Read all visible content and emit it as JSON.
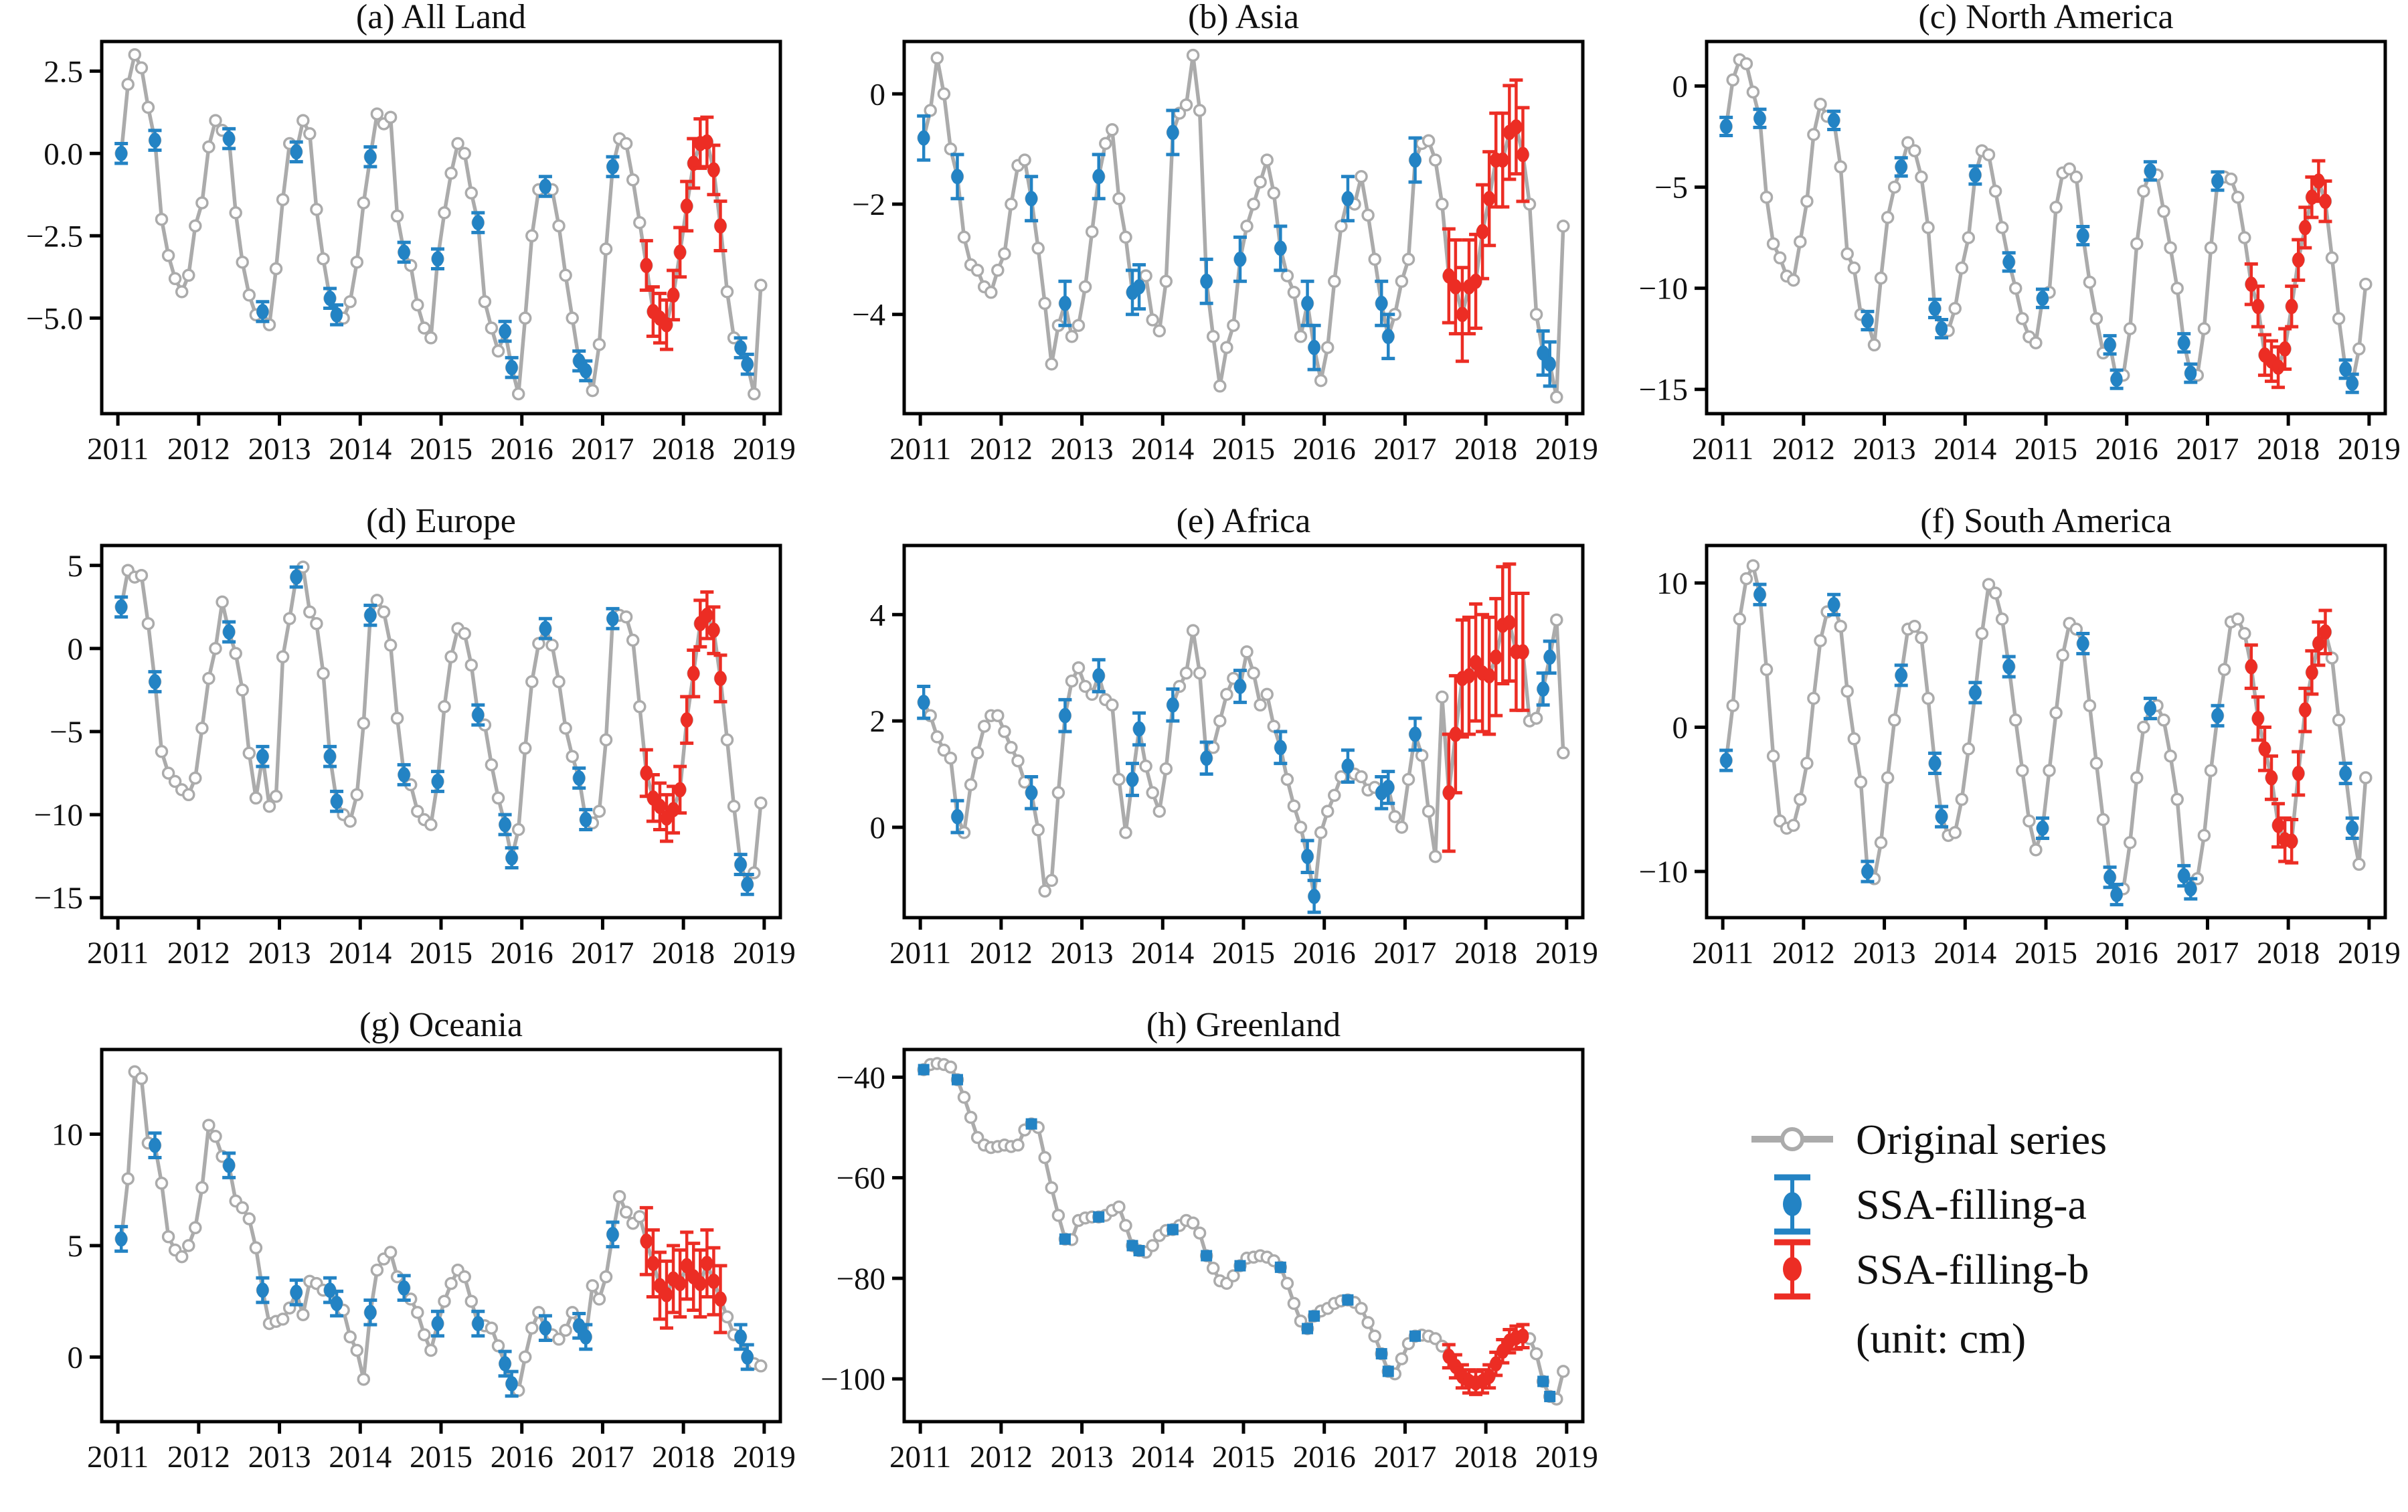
{
  "colors": {
    "original": "#ababab",
    "marker_face_original": "#ffffff",
    "ssa_a": "#2383c4",
    "ssa_b": "#ec2d24",
    "axis": "#000000",
    "background": "#ffffff"
  },
  "legend": {
    "items": [
      {
        "label": "Original series",
        "series": "original"
      },
      {
        "label": "SSA-filling-a",
        "series": "ssa_a"
      },
      {
        "label": "SSA-filling-b",
        "series": "ssa_b"
      }
    ],
    "unit_label": "(unit: cm)"
  },
  "chart_data": [
    {
      "id": "a",
      "title": "(a) All Land",
      "type": "line",
      "x_start_year": 2011,
      "xlim": [
        2010.8,
        2019.2
      ],
      "x_ticks": [
        2011,
        2012,
        2013,
        2014,
        2015,
        2016,
        2017,
        2018,
        2019
      ],
      "ylim": [
        -7.9,
        3.4
      ],
      "y_ticks": [
        2.5,
        0.0,
        -2.5,
        -5.0
      ],
      "y_tick_decimals": 1,
      "marker_a": "ellipse",
      "err_a": 0.3,
      "err_b": 0.75,
      "ssa_a_indices": [
        0,
        5,
        16,
        21,
        26,
        31,
        32,
        37,
        42,
        47,
        53,
        57,
        58,
        63,
        68,
        69,
        73,
        92,
        93
      ],
      "ssa_b_indices": [
        78,
        79,
        80,
        81,
        82,
        83,
        84,
        85,
        86,
        87,
        88,
        89
      ],
      "values": [
        0.0,
        2.1,
        3.0,
        2.6,
        1.4,
        0.4,
        -2.0,
        -3.1,
        -3.8,
        -4.2,
        -3.7,
        -2.2,
        -1.5,
        0.2,
        1.0,
        0.7,
        0.45,
        -1.8,
        -3.3,
        -4.3,
        -4.9,
        -4.8,
        -5.2,
        -3.5,
        -1.4,
        0.3,
        0.05,
        1.0,
        0.6,
        -1.7,
        -3.2,
        -4.4,
        -4.9,
        -5.0,
        -4.5,
        -3.3,
        -1.5,
        -0.1,
        1.2,
        0.9,
        1.1,
        -1.9,
        -3.0,
        -3.4,
        -4.6,
        -5.3,
        -5.6,
        -3.2,
        -1.8,
        -0.6,
        0.3,
        0.0,
        -1.2,
        -2.1,
        -4.5,
        -5.3,
        -6.0,
        -5.4,
        -6.5,
        -7.3,
        -5.0,
        -2.5,
        -1.1,
        -1.0,
        -1.1,
        -2.2,
        -3.7,
        -5.0,
        -6.3,
        -6.6,
        -7.2,
        -5.8,
        -2.9,
        -0.4,
        0.45,
        0.3,
        -0.8,
        -2.1,
        -3.4,
        -4.8,
        -5.0,
        -5.2,
        -4.3,
        -3.0,
        -1.6,
        -0.3,
        0.3,
        0.35,
        -0.5,
        -2.2,
        -4.2,
        -5.6,
        -5.9,
        -6.4,
        -7.3,
        -4.0
      ]
    },
    {
      "id": "b",
      "title": "(b) Asia",
      "type": "line",
      "x_start_year": 2011,
      "xlim": [
        2010.8,
        2019.2
      ],
      "x_ticks": [
        2011,
        2012,
        2013,
        2014,
        2015,
        2016,
        2017,
        2018,
        2019
      ],
      "ylim": [
        -5.8,
        0.95
      ],
      "y_ticks": [
        0,
        -2,
        -4
      ],
      "y_tick_decimals": 0,
      "marker_a": "ellipse",
      "err_a": 0.4,
      "err_b": 0.85,
      "ssa_a_indices": [
        0,
        5,
        16,
        21,
        26,
        31,
        32,
        37,
        42,
        47,
        53,
        57,
        58,
        63,
        68,
        69,
        73,
        92,
        93
      ],
      "ssa_b_indices": [
        78,
        79,
        80,
        81,
        82,
        83,
        84,
        85,
        86,
        87,
        88,
        89
      ],
      "values": [
        -0.8,
        -0.3,
        0.65,
        0.0,
        -1.0,
        -1.5,
        -2.6,
        -3.1,
        -3.2,
        -3.5,
        -3.6,
        -3.2,
        -2.9,
        -2.0,
        -1.3,
        -1.2,
        -1.9,
        -2.8,
        -3.8,
        -4.9,
        -4.2,
        -3.8,
        -4.4,
        -4.2,
        -3.5,
        -2.5,
        -1.5,
        -0.9,
        -0.65,
        -1.9,
        -2.6,
        -3.6,
        -3.5,
        -3.3,
        -4.1,
        -4.3,
        -3.4,
        -0.7,
        -0.35,
        -0.2,
        0.7,
        -0.3,
        -3.4,
        -4.4,
        -5.3,
        -4.6,
        -4.2,
        -3.0,
        -2.4,
        -2.0,
        -1.6,
        -1.2,
        -1.8,
        -2.8,
        -3.3,
        -3.6,
        -4.4,
        -3.8,
        -4.6,
        -5.2,
        -4.6,
        -3.4,
        -2.4,
        -1.9,
        -2.0,
        -1.5,
        -2.2,
        -3.0,
        -3.8,
        -4.4,
        -4.0,
        -3.4,
        -3.0,
        -1.2,
        -0.9,
        -0.85,
        -1.2,
        -2.0,
        -3.3,
        -3.5,
        -4.0,
        -3.5,
        -3.4,
        -2.5,
        -1.9,
        -1.2,
        -1.2,
        -0.7,
        -0.6,
        -1.1,
        -2.0,
        -4.0,
        -4.7,
        -4.9,
        -5.5,
        -2.4
      ]
    },
    {
      "id": "c",
      "title": "(c) North America",
      "type": "line",
      "x_start_year": 2011,
      "xlim": [
        2010.8,
        2019.2
      ],
      "x_ticks": [
        2011,
        2012,
        2013,
        2014,
        2015,
        2016,
        2017,
        2018,
        2019
      ],
      "ylim": [
        -16.2,
        2.2
      ],
      "y_ticks": [
        0,
        -5,
        -10,
        -15
      ],
      "y_tick_decimals": 0,
      "marker_a": "ellipse",
      "err_a": 0.45,
      "err_b": 1.0,
      "ssa_a_indices": [
        0,
        5,
        16,
        21,
        26,
        31,
        32,
        37,
        42,
        47,
        53,
        57,
        58,
        63,
        68,
        69,
        73,
        92,
        93
      ],
      "ssa_b_indices": [
        78,
        79,
        80,
        81,
        82,
        83,
        84,
        85,
        86,
        87,
        88,
        89
      ],
      "values": [
        -2.0,
        0.3,
        1.3,
        1.1,
        -0.3,
        -1.6,
        -5.5,
        -7.8,
        -8.5,
        -9.4,
        -9.6,
        -7.7,
        -5.7,
        -2.4,
        -0.9,
        -1.5,
        -1.7,
        -4.0,
        -8.3,
        -9.0,
        -11.3,
        -11.6,
        -12.8,
        -9.5,
        -6.5,
        -5.0,
        -4.0,
        -2.8,
        -3.2,
        -4.5,
        -7.0,
        -11.0,
        -12.0,
        -12.1,
        -11.0,
        -9.0,
        -7.5,
        -4.4,
        -3.2,
        -3.4,
        -5.2,
        -7.0,
        -8.7,
        -10.0,
        -11.5,
        -12.4,
        -12.7,
        -10.5,
        -10.2,
        -6.0,
        -4.3,
        -4.1,
        -4.5,
        -7.4,
        -9.7,
        -11.5,
        -13.2,
        -12.8,
        -14.5,
        -14.3,
        -12.0,
        -7.8,
        -5.2,
        -4.2,
        -4.4,
        -6.2,
        -8.0,
        -10.0,
        -12.7,
        -14.2,
        -14.3,
        -12.0,
        -8.0,
        -4.7,
        -4.5,
        -4.6,
        -5.5,
        -7.5,
        -9.8,
        -10.9,
        -13.3,
        -13.6,
        -13.9,
        -13.0,
        -10.9,
        -8.6,
        -7.0,
        -5.5,
        -4.7,
        -5.7,
        -8.5,
        -11.5,
        -14.0,
        -14.7,
        -13.0,
        -9.8
      ]
    },
    {
      "id": "d",
      "title": "(d) Europe",
      "type": "line",
      "x_start_year": 2011,
      "xlim": [
        2010.8,
        2019.2
      ],
      "x_ticks": [
        2011,
        2012,
        2013,
        2014,
        2015,
        2016,
        2017,
        2018,
        2019
      ],
      "ylim": [
        -16.2,
        6.2
      ],
      "y_ticks": [
        5,
        0,
        -5,
        -10,
        -15
      ],
      "y_tick_decimals": 0,
      "marker_a": "ellipse",
      "err_a": 0.6,
      "err_b": 1.4,
      "ssa_a_indices": [
        0,
        5,
        16,
        21,
        26,
        31,
        32,
        37,
        42,
        47,
        53,
        57,
        58,
        63,
        68,
        69,
        73,
        92,
        93
      ],
      "ssa_b_indices": [
        78,
        79,
        80,
        81,
        82,
        83,
        84,
        85,
        86,
        87,
        88,
        89
      ],
      "values": [
        2.5,
        4.7,
        4.3,
        4.4,
        1.5,
        -2.0,
        -6.2,
        -7.5,
        -8.0,
        -8.5,
        -8.8,
        -7.8,
        -4.8,
        -1.8,
        0.0,
        2.8,
        1.0,
        -0.3,
        -2.5,
        -6.3,
        -9.0,
        -6.5,
        -9.5,
        -8.9,
        -0.5,
        1.8,
        4.3,
        4.9,
        2.2,
        1.5,
        -1.5,
        -6.5,
        -9.2,
        -10.0,
        -10.4,
        -8.8,
        -4.5,
        2.0,
        2.9,
        2.2,
        0.2,
        -4.2,
        -7.6,
        -8.2,
        -9.8,
        -10.3,
        -10.6,
        -8.0,
        -3.5,
        -0.5,
        1.2,
        0.9,
        -1.0,
        -4.0,
        -4.6,
        -7.0,
        -9.0,
        -10.6,
        -12.6,
        -10.9,
        -6.0,
        -2.0,
        0.3,
        1.2,
        0.2,
        -2.0,
        -4.8,
        -6.5,
        -7.8,
        -10.3,
        -10.5,
        -9.8,
        -5.5,
        1.8,
        2.0,
        1.9,
        0.5,
        -3.5,
        -7.5,
        -9.0,
        -9.5,
        -10.2,
        -9.7,
        -8.5,
        -4.3,
        -1.5,
        1.5,
        2.0,
        1.1,
        -1.8,
        -5.5,
        -9.5,
        -13.0,
        -14.2,
        -13.5,
        -9.3
      ]
    },
    {
      "id": "e",
      "title": "(e) Africa",
      "type": "line",
      "x_start_year": 2011,
      "xlim": [
        2010.8,
        2019.2
      ],
      "x_ticks": [
        2011,
        2012,
        2013,
        2014,
        2015,
        2016,
        2017,
        2018,
        2019
      ],
      "ylim": [
        -1.7,
        5.3
      ],
      "y_ticks": [
        4,
        2,
        0
      ],
      "y_tick_decimals": 0,
      "marker_a": "ellipse",
      "err_a": 0.3,
      "err_b": 1.1,
      "ssa_a_indices": [
        0,
        5,
        16,
        21,
        26,
        31,
        32,
        37,
        42,
        47,
        53,
        57,
        58,
        63,
        68,
        69,
        73,
        92,
        93
      ],
      "ssa_b_indices": [
        78,
        79,
        80,
        81,
        82,
        83,
        84,
        85,
        86,
        87,
        88,
        89
      ],
      "values": [
        2.35,
        2.1,
        1.7,
        1.45,
        1.3,
        0.2,
        -0.1,
        0.8,
        1.4,
        1.9,
        2.1,
        2.1,
        1.8,
        1.5,
        1.25,
        0.85,
        0.65,
        -0.05,
        -1.2,
        -1.0,
        0.65,
        2.1,
        2.75,
        3.0,
        2.65,
        2.5,
        2.85,
        2.4,
        2.3,
        0.9,
        -0.1,
        0.9,
        1.85,
        1.15,
        0.65,
        0.3,
        1.1,
        2.3,
        2.65,
        2.9,
        3.7,
        2.9,
        1.3,
        1.5,
        2.0,
        2.5,
        2.8,
        2.65,
        3.3,
        2.9,
        2.3,
        2.5,
        1.9,
        1.5,
        0.9,
        0.4,
        0.0,
        -0.55,
        -1.3,
        -0.1,
        0.3,
        0.6,
        0.95,
        1.15,
        1.0,
        0.95,
        0.7,
        0.75,
        0.65,
        0.75,
        0.2,
        0.0,
        0.9,
        1.75,
        1.35,
        0.3,
        -0.55,
        2.45,
        0.65,
        1.75,
        2.8,
        2.85,
        3.1,
        2.9,
        2.85,
        3.2,
        3.8,
        3.85,
        3.3,
        3.3,
        2.0,
        2.05,
        2.6,
        3.2,
        3.9,
        1.4
      ]
    },
    {
      "id": "f",
      "title": "(f) South America",
      "type": "line",
      "x_start_year": 2011,
      "xlim": [
        2010.8,
        2019.2
      ],
      "x_ticks": [
        2011,
        2012,
        2013,
        2014,
        2015,
        2016,
        2017,
        2018,
        2019
      ],
      "ylim": [
        -13.2,
        12.6
      ],
      "y_ticks": [
        10,
        0,
        -10
      ],
      "y_tick_decimals": 0,
      "marker_a": "ellipse",
      "err_a": 0.7,
      "err_b": 1.5,
      "ssa_a_indices": [
        0,
        5,
        16,
        21,
        26,
        31,
        32,
        37,
        42,
        47,
        53,
        57,
        58,
        63,
        68,
        69,
        73,
        92,
        93
      ],
      "ssa_b_indices": [
        78,
        79,
        80,
        81,
        82,
        83,
        84,
        85,
        86,
        87,
        88,
        89
      ],
      "values": [
        -2.3,
        1.5,
        7.5,
        10.3,
        11.2,
        9.2,
        4.0,
        -2.0,
        -6.5,
        -7.0,
        -6.8,
        -5.0,
        -2.5,
        2.0,
        6.0,
        8.0,
        8.5,
        7.0,
        2.5,
        -0.8,
        -3.8,
        -10.0,
        -10.5,
        -8.0,
        -3.5,
        0.5,
        3.6,
        6.8,
        7.0,
        6.2,
        2.0,
        -2.5,
        -6.2,
        -7.5,
        -7.3,
        -5.0,
        -1.5,
        2.4,
        6.5,
        9.9,
        9.3,
        7.5,
        4.2,
        0.5,
        -3.0,
        -6.5,
        -8.5,
        -7.0,
        -3.0,
        1.0,
        5.0,
        7.2,
        6.8,
        5.8,
        1.5,
        -2.5,
        -6.4,
        -10.4,
        -11.6,
        -11.2,
        -8.0,
        -3.5,
        0.0,
        1.3,
        1.5,
        0.5,
        -2.0,
        -5.0,
        -10.3,
        -11.2,
        -10.5,
        -7.5,
        -3.0,
        0.8,
        4.0,
        7.3,
        7.5,
        6.5,
        4.2,
        0.6,
        -1.5,
        -3.5,
        -6.8,
        -7.8,
        -7.9,
        -3.2,
        1.2,
        3.8,
        5.8,
        6.6,
        4.8,
        0.5,
        -3.2,
        -7.0,
        -9.5,
        -3.5
      ]
    },
    {
      "id": "g",
      "title": "(g) Oceania",
      "type": "line",
      "x_start_year": 2011,
      "xlim": [
        2010.8,
        2019.2
      ],
      "x_ticks": [
        2011,
        2012,
        2013,
        2014,
        2015,
        2016,
        2017,
        2018,
        2019
      ],
      "ylim": [
        -2.9,
        13.8
      ],
      "y_ticks": [
        10,
        5,
        0
      ],
      "y_tick_decimals": 0,
      "marker_a": "ellipse",
      "err_a": 0.55,
      "err_b": 1.5,
      "ssa_a_indices": [
        0,
        5,
        16,
        21,
        26,
        31,
        32,
        37,
        42,
        47,
        53,
        57,
        58,
        63,
        68,
        69,
        73,
        92,
        93
      ],
      "ssa_b_indices": [
        78,
        79,
        80,
        81,
        82,
        83,
        84,
        85,
        86,
        87,
        88,
        89
      ],
      "values": [
        5.3,
        8.0,
        12.8,
        12.5,
        9.6,
        9.5,
        7.8,
        5.4,
        4.8,
        4.5,
        5.0,
        5.8,
        7.6,
        10.4,
        9.9,
        9.0,
        8.6,
        7.0,
        6.7,
        6.2,
        4.9,
        3.0,
        1.5,
        1.6,
        1.7,
        2.2,
        2.9,
        1.9,
        3.4,
        3.3,
        3.0,
        3.0,
        2.4,
        2.1,
        0.9,
        0.3,
        -1.0,
        2.0,
        3.9,
        4.4,
        4.7,
        3.6,
        3.1,
        2.6,
        2.0,
        1.0,
        0.3,
        1.5,
        2.5,
        3.3,
        3.9,
        3.6,
        2.5,
        1.5,
        1.4,
        1.3,
        0.5,
        -0.3,
        -1.2,
        -1.5,
        0.0,
        1.3,
        2.0,
        1.3,
        1.0,
        0.8,
        1.2,
        2.0,
        1.4,
        0.9,
        3.2,
        2.6,
        3.6,
        5.5,
        7.2,
        6.5,
        6.0,
        6.3,
        5.2,
        4.2,
        3.2,
        2.8,
        3.5,
        3.3,
        4.1,
        3.6,
        3.3,
        4.2,
        3.4,
        2.6,
        1.8,
        1.0,
        0.9,
        0.0,
        -0.3,
        -0.4
      ]
    },
    {
      "id": "h",
      "title": "(h) Greenland",
      "type": "line",
      "x_start_year": 2011,
      "xlim": [
        2010.8,
        2019.2
      ],
      "x_ticks": [
        2011,
        2012,
        2013,
        2014,
        2015,
        2016,
        2017,
        2018,
        2019
      ],
      "ylim": [
        -108.5,
        -34.5
      ],
      "y_ticks": [
        -40,
        -60,
        -80,
        -100
      ],
      "y_tick_decimals": 0,
      "marker_a": "square",
      "err_a": 0,
      "err_b": 2.3,
      "ssa_a_indices": [
        0,
        5,
        16,
        21,
        26,
        31,
        32,
        37,
        42,
        47,
        53,
        57,
        58,
        63,
        68,
        69,
        73,
        92,
        93
      ],
      "ssa_b_indices": [
        78,
        79,
        80,
        81,
        82,
        83,
        84,
        85,
        86,
        87,
        88,
        89
      ],
      "values": [
        -38.5,
        -37.5,
        -37.3,
        -37.5,
        -38.0,
        -40.5,
        -44.0,
        -48.0,
        -52.0,
        -53.5,
        -54.0,
        -53.8,
        -53.5,
        -53.8,
        -53.5,
        -50.5,
        -49.3,
        -50.0,
        -56.0,
        -62.0,
        -67.5,
        -72.2,
        -72.3,
        -68.5,
        -68.0,
        -67.8,
        -67.8,
        -67.5,
        -66.5,
        -65.8,
        -69.5,
        -73.5,
        -74.5,
        -74.8,
        -73.5,
        -71.5,
        -70.5,
        -70.3,
        -69.5,
        -68.5,
        -69.0,
        -71.0,
        -75.5,
        -78.0,
        -80.5,
        -81.0,
        -79.5,
        -77.5,
        -76.0,
        -75.8,
        -75.5,
        -75.8,
        -76.5,
        -77.8,
        -81.0,
        -85.0,
        -88.5,
        -90.0,
        -87.5,
        -86.5,
        -86.0,
        -85.0,
        -84.5,
        -84.3,
        -84.8,
        -86.0,
        -88.8,
        -91.5,
        -95.0,
        -98.5,
        -99.0,
        -96.0,
        -93.0,
        -91.5,
        -91.3,
        -91.5,
        -92.0,
        -93.5,
        -95.5,
        -97.5,
        -99.5,
        -100.5,
        -100.8,
        -100.5,
        -99.5,
        -97.0,
        -94.5,
        -92.5,
        -91.8,
        -91.5,
        -92.0,
        -95.0,
        -100.5,
        -103.5,
        -104.0,
        -98.5
      ]
    }
  ]
}
